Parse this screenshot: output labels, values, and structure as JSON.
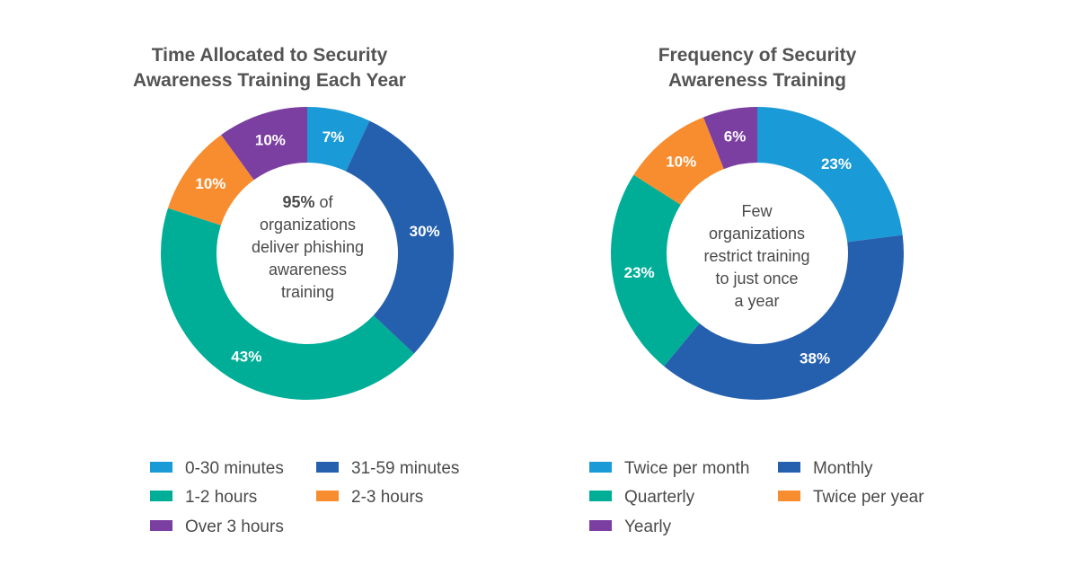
{
  "chart_data": [
    {
      "type": "pie",
      "title": [
        "Time Allocated to Security",
        "Awareness Training Each Year"
      ],
      "center_text": {
        "bold": "95%",
        "lines": [
          " of",
          "organizations",
          "deliver phishing",
          "awareness",
          "training"
        ]
      },
      "series": [
        {
          "name": "0-30 minutes",
          "value": 7,
          "label": "7%",
          "color": "#1a9ad6"
        },
        {
          "name": "31-59 minutes",
          "value": 30,
          "label": "30%",
          "color": "#2560ae"
        },
        {
          "name": "1-2 hours",
          "value": 43,
          "label": "43%",
          "color": "#00ae97"
        },
        {
          "name": "2-3 hours",
          "value": 10,
          "label": "10%",
          "color": "#f78d2f"
        },
        {
          "name": "Over 3 hours",
          "value": 10,
          "label": "10%",
          "color": "#7b3ea1"
        }
      ]
    },
    {
      "type": "pie",
      "title": [
        "Frequency of Security",
        "Awareness Training"
      ],
      "center_text": {
        "lines": [
          "Few",
          "organizations",
          "restrict training",
          "to just once",
          "a year"
        ]
      },
      "series": [
        {
          "name": "Twice per month",
          "value": 23,
          "label": "23%",
          "color": "#1a9ad6"
        },
        {
          "name": "Monthly",
          "value": 38,
          "label": "38%",
          "color": "#2560ae"
        },
        {
          "name": "Quarterly",
          "value": 23,
          "label": "23%",
          "color": "#00ae97"
        },
        {
          "name": "Twice per year",
          "value": 10,
          "label": "10%",
          "color": "#f78d2f"
        },
        {
          "name": "Yearly",
          "value": 6,
          "label": "6%",
          "color": "#7b3ea1"
        }
      ]
    }
  ]
}
